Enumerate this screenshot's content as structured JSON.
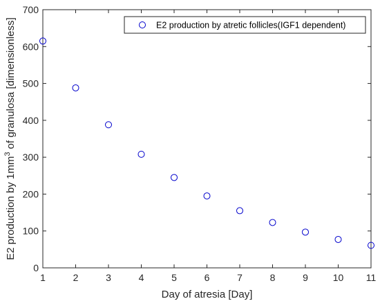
{
  "chart_data": {
    "type": "scatter",
    "xlabel": "Day of atresia [Day]",
    "ylabel_prefix": "E2 production by 1mm",
    "ylabel_superscript": "3",
    "ylabel_suffix": " of granulosa [dimensionless]",
    "xlim": [
      1,
      11
    ],
    "ylim": [
      0,
      700
    ],
    "xticks": [
      "1",
      "2",
      "3",
      "4",
      "5",
      "6",
      "7",
      "8",
      "9",
      "10",
      "11"
    ],
    "yticks": [
      "0",
      "100",
      "200",
      "300",
      "400",
      "500",
      "600",
      "700"
    ],
    "grid": false,
    "legend_position": "top-right",
    "marker_color": "#0000cc",
    "series": [
      {
        "name": "E2 production by atretic follicles(IGF1 dependent)",
        "x": [
          1,
          2,
          3,
          4,
          5,
          6,
          7,
          8,
          9,
          10,
          11
        ],
        "y": [
          615,
          488,
          388,
          308,
          245,
          195,
          155,
          123,
          97,
          77,
          61
        ]
      }
    ]
  }
}
